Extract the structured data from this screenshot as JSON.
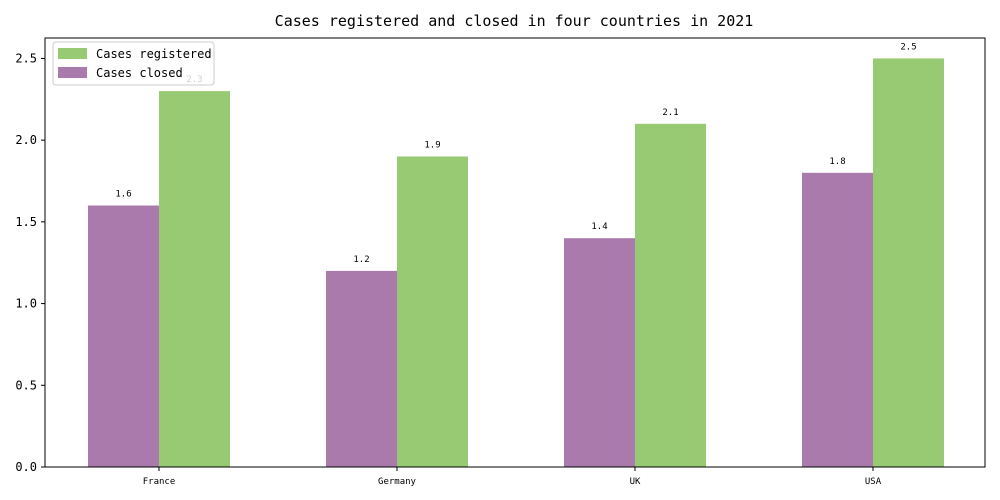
{
  "chart_data": {
    "type": "bar",
    "title": "Cases registered and closed in four countries in 2021",
    "xlabel": "",
    "ylabel": "",
    "categories": [
      "France",
      "Germany",
      "UK",
      "USA"
    ],
    "series": [
      {
        "name": "Cases closed",
        "values": [
          1.6,
          1.2,
          1.4,
          1.8
        ],
        "color": "#a97aab"
      },
      {
        "name": "Cases registered",
        "values": [
          2.3,
          1.9,
          2.1,
          2.5
        ],
        "color": "#98c973"
      }
    ],
    "ylim": [
      0,
      2.625
    ],
    "yticks": [
      "0.0",
      "0.5",
      "1.0",
      "1.5",
      "2.0",
      "2.5"
    ],
    "legend": {
      "position": "top-left",
      "order": [
        "Cases registered",
        "Cases closed"
      ]
    },
    "grid": false
  }
}
